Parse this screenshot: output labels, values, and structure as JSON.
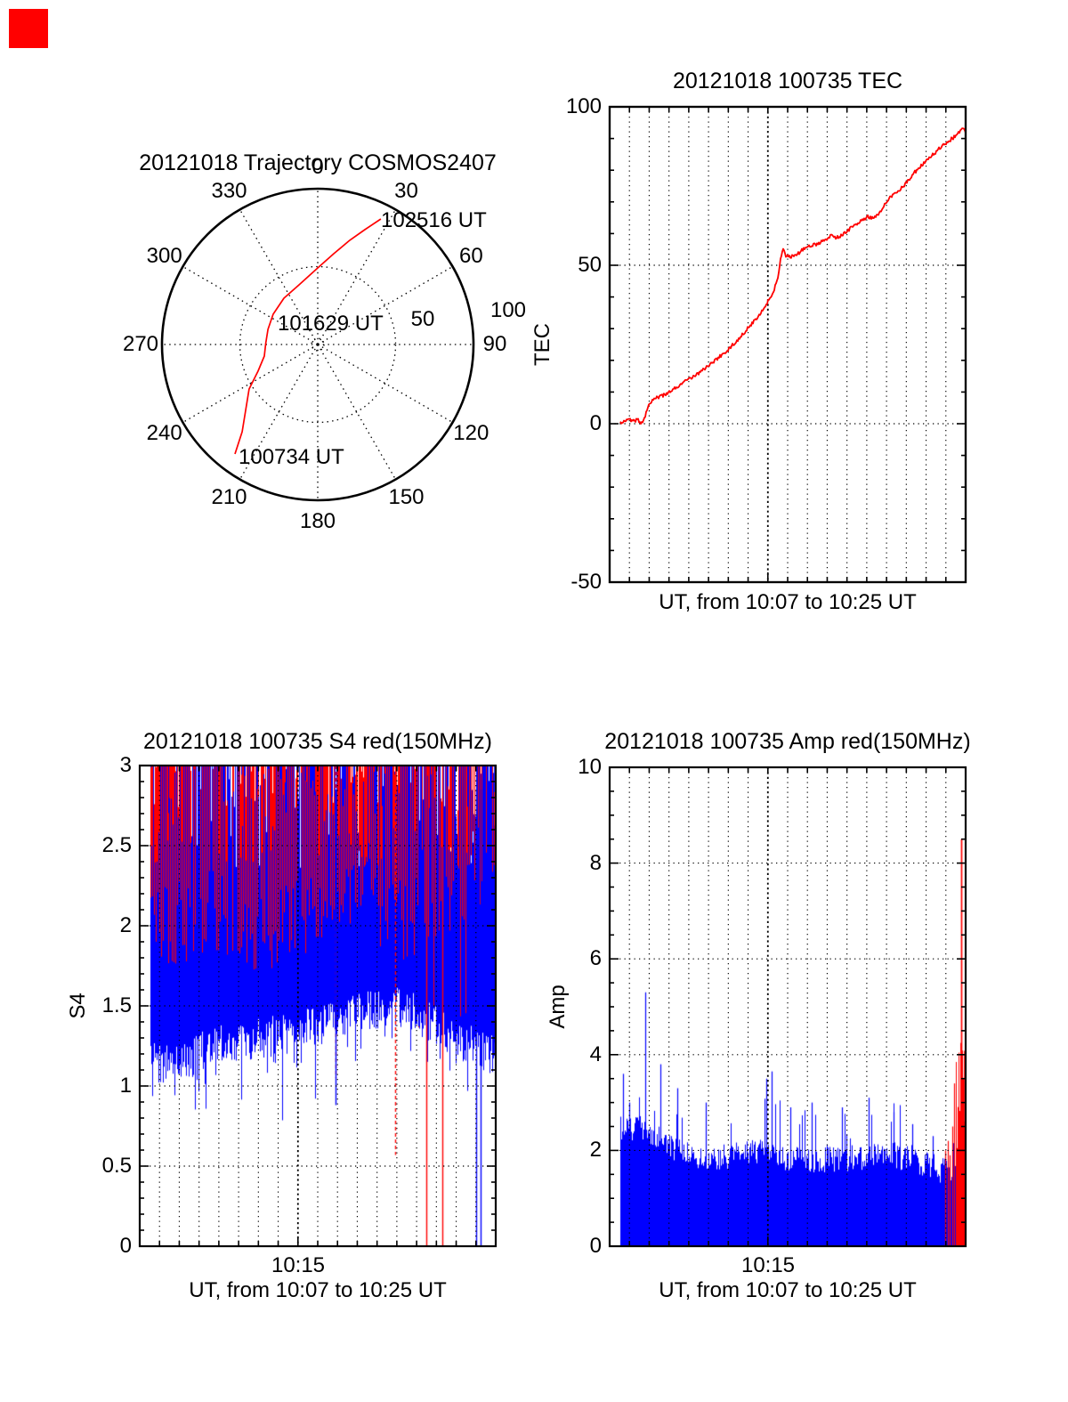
{
  "figure": {
    "background": "#ffffff",
    "corner_marker_color": "#ff0000",
    "axis_color": "#000000"
  },
  "chart_data": [
    {
      "type": "polar-trajectory",
      "title": "20121018 Trajectory COSMOS2407",
      "azimuth_tick_labels": [
        "0",
        "30",
        "60",
        "90",
        "120",
        "150",
        "180",
        "210",
        "240",
        "270",
        "300",
        "330"
      ],
      "ring_tick_labels": [
        "50",
        "100"
      ],
      "grid": "dotted spokes every 30 deg, dotted ring at 50, solid outer ring at 100",
      "trajectory": {
        "name": "satellite pass",
        "color": "#ff0000",
        "points_az_r": [
          [
            217.1,
            0.881
          ],
          [
            220.9,
            0.741
          ],
          [
            237.0,
            0.525
          ],
          [
            245.9,
            0.42
          ],
          [
            257.8,
            0.351
          ],
          [
            271.4,
            0.334
          ],
          [
            286.9,
            0.334
          ],
          [
            304.2,
            0.346
          ],
          [
            323.8,
            0.368
          ],
          [
            342.6,
            0.401
          ],
          [
            0.7,
            0.497
          ],
          [
            10.0,
            0.592
          ],
          [
            17.1,
            0.7
          ],
          [
            22.3,
            0.797
          ],
          [
            26.7,
            0.902
          ]
        ]
      },
      "waypoints": [
        {
          "label": "100734 UT",
          "position": "start"
        },
        {
          "label": "101629 UT",
          "position": "mid"
        },
        {
          "label": "102516 UT",
          "position": "end"
        }
      ]
    },
    {
      "type": "line",
      "title": "20121018 100735 TEC",
      "ylabel": "TEC",
      "xlabel": "UT, from 10:07 to 10:25 UT",
      "x_start": "10:07",
      "x_end": "10:25",
      "x_total_minutes": 18,
      "ylim": [
        -50,
        100
      ],
      "yticks": [
        100,
        50,
        0,
        -50
      ],
      "ytick_labels": [
        "100",
        "50",
        "0",
        "-50"
      ],
      "grid_y_values": [
        50,
        0
      ],
      "grid_x_every_minute": true,
      "dark_grid_minute": 8,
      "series": [
        {
          "name": "TEC",
          "color": "#ff0000",
          "jitter": 0.55,
          "points_min_val": [
            [
              0.5,
              0.4
            ],
            [
              0.75,
              0.9
            ],
            [
              1.0,
              1.3
            ],
            [
              1.2,
              0.8
            ],
            [
              1.4,
              1.2
            ],
            [
              1.55,
              0.6
            ],
            [
              1.65,
              0.1
            ],
            [
              1.75,
              1.5
            ],
            [
              1.9,
              5.0
            ],
            [
              2.1,
              7.2
            ],
            [
              2.3,
              8.0
            ],
            [
              2.6,
              8.6
            ],
            [
              2.9,
              9.4
            ],
            [
              3.1,
              10.4
            ],
            [
              3.4,
              11.6
            ],
            [
              3.7,
              12.8
            ],
            [
              4.0,
              14.0
            ],
            [
              4.3,
              15.2
            ],
            [
              4.6,
              16.4
            ],
            [
              4.9,
              17.9
            ],
            [
              5.2,
              19.3
            ],
            [
              5.5,
              20.8
            ],
            [
              5.8,
              22.4
            ],
            [
              6.1,
              24.0
            ],
            [
              6.4,
              26.0
            ],
            [
              6.7,
              28.0
            ],
            [
              7.0,
              30.2
            ],
            [
              7.3,
              32.4
            ],
            [
              7.6,
              34.8
            ],
            [
              7.9,
              37.4
            ],
            [
              8.2,
              40.6
            ],
            [
              8.35,
              43.0
            ],
            [
              8.5,
              46.0
            ],
            [
              8.65,
              52.0
            ],
            [
              8.75,
              55.0
            ],
            [
              8.9,
              53.2
            ],
            [
              9.1,
              52.6
            ],
            [
              9.4,
              53.0
            ],
            [
              9.7,
              54.6
            ],
            [
              10.0,
              55.8
            ],
            [
              10.3,
              56.4
            ],
            [
              10.6,
              57.0
            ],
            [
              10.9,
              58.0
            ],
            [
              11.2,
              59.6
            ],
            [
              11.35,
              58.8
            ],
            [
              11.6,
              59.0
            ],
            [
              11.9,
              60.2
            ],
            [
              12.2,
              61.8
            ],
            [
              12.5,
              63.0
            ],
            [
              12.8,
              64.2
            ],
            [
              13.0,
              65.4
            ],
            [
              13.2,
              65.0
            ],
            [
              13.5,
              65.8
            ],
            [
              13.7,
              67.0
            ],
            [
              13.9,
              69.0
            ],
            [
              14.2,
              71.6
            ],
            [
              14.5,
              73.0
            ],
            [
              14.8,
              74.6
            ],
            [
              15.0,
              76.0
            ],
            [
              15.3,
              78.4
            ],
            [
              15.6,
              80.6
            ],
            [
              15.9,
              82.2
            ],
            [
              16.2,
              84.0
            ],
            [
              16.5,
              85.8
            ],
            [
              16.8,
              87.6
            ],
            [
              17.1,
              89.0
            ],
            [
              17.4,
              90.4
            ],
            [
              17.7,
              92.2
            ],
            [
              17.85,
              93.0
            ],
            [
              18.0,
              92.0
            ]
          ]
        }
      ]
    },
    {
      "type": "noise-line",
      "title": "20121018 100735 S4 red(150MHz)",
      "ylabel": "S4",
      "xlabel": "UT, from 10:07 to 10:25 UT",
      "ylim": [
        0,
        3
      ],
      "yticks": [
        3,
        2.5,
        2,
        1.5,
        1,
        0.5,
        0
      ],
      "ytick_labels": [
        "3",
        "2.5",
        "2",
        "1.5",
        "1",
        "0.5",
        "0"
      ],
      "grid_y_values": [
        2.5,
        2,
        1.5,
        1,
        0.5
      ],
      "xticks": [
        {
          "minute": 8,
          "label": "10:15"
        }
      ],
      "dark_grid_minute": 8,
      "t_range": [
        0.03,
        1.0
      ],
      "seed": 20121018,
      "series": [
        {
          "name": "blue",
          "color": "#0000ff",
          "upper_env": 3.0,
          "lower_env_points": [
            [
              0.03,
              1.15
            ],
            [
              0.1,
              1.12
            ],
            [
              0.2,
              1.25
            ],
            [
              0.35,
              1.3
            ],
            [
              0.5,
              1.37
            ],
            [
              0.6,
              1.45
            ],
            [
              0.7,
              1.5
            ],
            [
              0.78,
              1.45
            ],
            [
              0.85,
              1.35
            ],
            [
              0.93,
              1.25
            ],
            [
              1.0,
              1.2
            ]
          ],
          "drop_events": [
            {
              "t": 0.5525,
              "low": 0.88
            },
            {
              "t": 0.9475,
              "low": 0.0
            },
            {
              "t": 0.96,
              "low": 0.0
            }
          ]
        },
        {
          "name": "red(150MHz)",
          "color": "#ff0000",
          "upper_env": 3.0,
          "lower_env_points": [
            [
              0.03,
              2.05
            ],
            [
              0.1,
              2.0
            ],
            [
              0.2,
              2.1
            ],
            [
              0.3,
              1.95
            ],
            [
              0.4,
              2.0
            ],
            [
              0.5,
              2.15
            ],
            [
              0.58,
              2.3
            ],
            [
              0.65,
              2.15
            ],
            [
              0.72,
              2.0
            ],
            [
              0.8,
              2.05
            ],
            [
              0.88,
              2.25
            ],
            [
              1.0,
              2.4
            ]
          ],
          "drop_events": [
            {
              "t": 0.5525,
              "low": 1.05,
              "dashed": true
            },
            {
              "t": 0.72,
              "low": 0.57,
              "dashed": true
            },
            {
              "t": 0.8075,
              "low": 0.0
            },
            {
              "t": 0.8525,
              "low": 0.0
            }
          ]
        }
      ]
    },
    {
      "type": "noise-line",
      "title": "20121018 100735 Amp red(150MHz)",
      "ylabel": "Amp",
      "xlabel": "UT, from 10:07 to 10:25 UT",
      "ylim": [
        0,
        10
      ],
      "yticks": [
        10,
        8,
        6,
        4,
        2,
        0
      ],
      "ytick_labels": [
        "10",
        "8",
        "6",
        "4",
        "2",
        "0"
      ],
      "grid_y_values": [
        8,
        6,
        4,
        2
      ],
      "xticks": [
        {
          "minute": 8,
          "label": "10:15"
        }
      ],
      "dark_grid_minute": 8,
      "t_range": [
        0.03,
        1.0
      ],
      "seed": 987,
      "series": [
        {
          "name": "blue",
          "color": "#0000ff",
          "baseline": 0,
          "top_env_points": [
            [
              0.03,
              2.45
            ],
            [
              0.08,
              2.5
            ],
            [
              0.12,
              2.3
            ],
            [
              0.2,
              1.95
            ],
            [
              0.3,
              1.85
            ],
            [
              0.42,
              2.0
            ],
            [
              0.5,
              1.85
            ],
            [
              0.6,
              1.8
            ],
            [
              0.7,
              1.85
            ],
            [
              0.8,
              1.9
            ],
            [
              0.88,
              1.75
            ],
            [
              0.93,
              1.6
            ],
            [
              1.0,
              1.6
            ]
          ],
          "spikes": [
            [
              0.0375,
              3.6
            ],
            [
              0.055,
              3.0
            ],
            [
              0.1,
              5.3
            ],
            [
              0.143,
              3.8
            ],
            [
              0.19,
              3.3
            ],
            [
              0.27,
              3.0
            ],
            [
              0.44,
              3.5
            ],
            [
              0.455,
              3.65
            ],
            [
              0.51,
              2.9
            ],
            [
              0.57,
              3.0
            ],
            [
              0.655,
              2.9
            ],
            [
              0.73,
              3.1
            ],
            [
              0.8,
              2.8
            ],
            [
              0.852,
              2.55
            ],
            [
              0.91,
              2.3
            ]
          ]
        },
        {
          "name": "red(150MHz)",
          "color": "#ff0000",
          "baseline": 0,
          "pre_spikes": [
            [
              0.945,
              2.0
            ],
            [
              0.952,
              2.2
            ],
            [
              0.958,
              1.9
            ],
            [
              0.965,
              2.5
            ],
            [
              0.97,
              3.4
            ]
          ],
          "block": {
            "t_start": 0.975,
            "t_end": 1.0,
            "top_min": 3.4,
            "top_max": 4.3
          },
          "main_spike": {
            "t": 0.99,
            "value": 8.5
          }
        }
      ]
    }
  ]
}
